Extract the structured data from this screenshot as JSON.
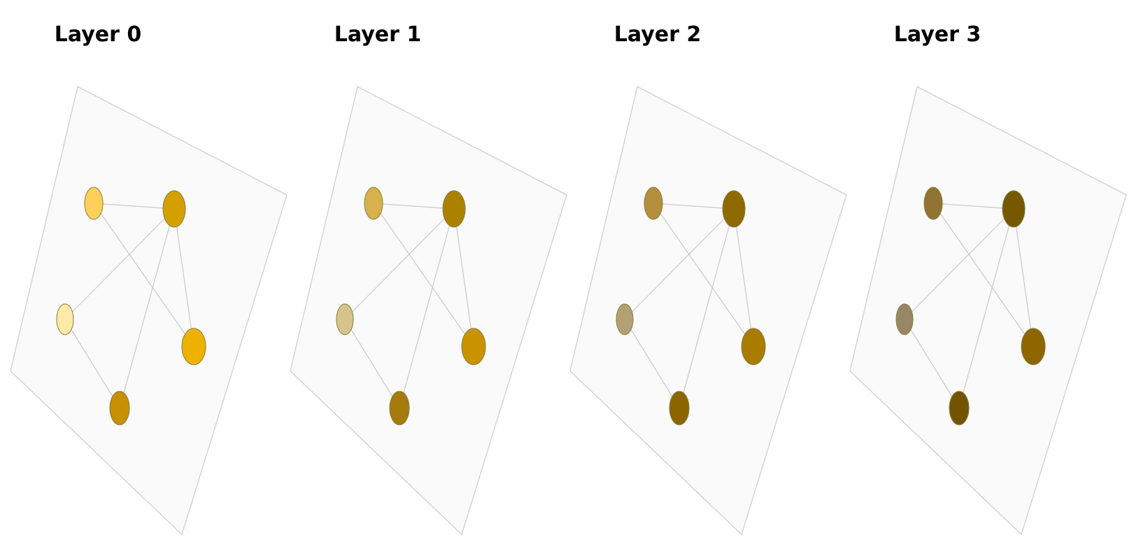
{
  "diagram": {
    "type": "multilayer-network",
    "layers": [
      {
        "title": "Layer 0",
        "node_colors": [
          "#fdd159",
          "#d3a000",
          "#fde9a8",
          "#efb100",
          "#c69000"
        ]
      },
      {
        "title": "Layer 1",
        "node_colors": [
          "#d6b14e",
          "#ab8200",
          "#d6c48c",
          "#c99300",
          "#a47b0c"
        ]
      },
      {
        "title": "Layer 2",
        "node_colors": [
          "#b48f3c",
          "#8e6a00",
          "#b2a173",
          "#a97c00",
          "#8a6500"
        ]
      },
      {
        "title": "Layer 3",
        "node_colors": [
          "#917333",
          "#765800",
          "#978767",
          "#8d6600",
          "#725400"
        ]
      }
    ],
    "edges": [
      [
        0,
        1
      ],
      [
        0,
        3
      ],
      [
        1,
        2
      ],
      [
        1,
        3
      ],
      [
        1,
        4
      ],
      [
        2,
        4
      ]
    ],
    "node_stroke_color": "#8b7a3a",
    "plane_fill_color": "#fafafa",
    "edge_color": "#c8c8c8"
  }
}
